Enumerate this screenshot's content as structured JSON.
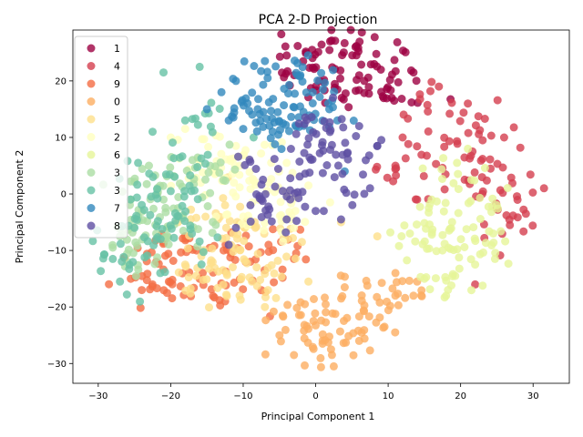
{
  "chart_data": {
    "type": "scatter",
    "title": "PCA 2-D Projection",
    "xlabel": "Principal Component 1",
    "ylabel": "Principal Component 2",
    "xlim": [
      -33.5,
      35
    ],
    "ylim": [
      -33.5,
      29
    ],
    "xticks": [
      -30,
      -20,
      -10,
      0,
      10,
      20,
      30
    ],
    "yticks": [
      -30,
      -20,
      -10,
      0,
      10,
      20
    ],
    "grid": false,
    "legend_position": "top-left",
    "marker_alpha": 0.8,
    "series": [
      {
        "name": "1",
        "color": "#9e0142",
        "centers": [
          [
            3,
            25.5
          ],
          [
            6,
            23.5
          ],
          [
            8,
            24.5
          ],
          [
            1,
            22
          ],
          [
            -1,
            23.5
          ],
          [
            4,
            20
          ],
          [
            10,
            21
          ],
          [
            7,
            18.5
          ],
          [
            12,
            20
          ],
          [
            -3,
            24
          ]
        ],
        "points": [
          [
            2,
            27
          ],
          [
            -0.5,
            25.5
          ],
          [
            5.5,
            26
          ],
          [
            9,
            22
          ],
          [
            13.5,
            21.5
          ],
          [
            6,
            21
          ],
          [
            3,
            18.5
          ],
          [
            -4,
            24.5
          ],
          [
            10.5,
            17
          ],
          [
            0.5,
            20
          ]
        ]
      },
      {
        "name": "4",
        "color": "#d53e4f",
        "centers": [
          [
            16,
            8
          ],
          [
            22,
            9
          ],
          [
            24,
            5
          ],
          [
            18,
            2
          ],
          [
            27,
            0
          ],
          [
            12,
            6
          ],
          [
            20,
            13
          ],
          [
            15,
            16
          ],
          [
            25,
            -3
          ],
          [
            28,
            -6
          ]
        ],
        "points": [
          [
            21,
            16
          ],
          [
            26,
            10
          ],
          [
            11,
            5
          ],
          [
            14,
            -1
          ],
          [
            29,
            -3.5
          ],
          [
            31.5,
            1
          ],
          [
            22,
            -16
          ],
          [
            17,
            19
          ],
          [
            23,
            0
          ],
          [
            12,
            10
          ]
        ]
      },
      {
        "name": "9",
        "color": "#f46d43",
        "centers": [
          [
            -19,
            -13
          ],
          [
            -22,
            -14
          ],
          [
            -15,
            -10
          ],
          [
            -17,
            -18
          ],
          [
            -13,
            -13
          ],
          [
            -24,
            -16
          ],
          [
            -20,
            -9
          ],
          [
            -10,
            -11
          ],
          [
            -8,
            -15
          ],
          [
            -5,
            -10
          ]
        ],
        "points": [
          [
            -24,
            -17
          ],
          [
            -20.5,
            -17.5
          ],
          [
            -16,
            -15
          ],
          [
            -12.5,
            -19
          ],
          [
            -9,
            -12
          ],
          [
            -6.5,
            -9
          ],
          [
            -3,
            -11.5
          ],
          [
            -22,
            -12
          ],
          [
            -18,
            -7.5
          ],
          [
            -25.5,
            -15
          ]
        ]
      },
      {
        "name": "0",
        "color": "#fdae61",
        "centers": [
          [
            1,
            -22
          ],
          [
            4,
            -19
          ],
          [
            -2,
            -24
          ],
          [
            7,
            -21
          ],
          [
            10,
            -19
          ],
          [
            3,
            -26
          ],
          [
            12,
            -17
          ],
          [
            0,
            -27
          ],
          [
            -3,
            -21
          ],
          [
            8,
            -24
          ]
        ],
        "points": [
          [
            -5,
            -25
          ],
          [
            -3,
            -28.5
          ],
          [
            2.5,
            -30.5
          ],
          [
            9.5,
            -23.5
          ],
          [
            13.5,
            -18
          ],
          [
            11,
            -14
          ],
          [
            14,
            -15.5
          ],
          [
            6,
            -26
          ],
          [
            -1.5,
            -19.5
          ],
          [
            4,
            -16.5
          ]
        ]
      },
      {
        "name": "5",
        "color": "#fee08b",
        "centers": [
          [
            -13,
            -12
          ],
          [
            -9,
            -8
          ],
          [
            -15,
            -16
          ],
          [
            -11,
            -15
          ],
          [
            -7,
            -7
          ],
          [
            -12,
            -4
          ],
          [
            -16,
            -10
          ],
          [
            -6,
            -13
          ],
          [
            -8,
            -16
          ],
          [
            -14,
            -6
          ]
        ],
        "points": [
          [
            -18,
            -12.5
          ],
          [
            -7,
            -20
          ],
          [
            -10.5,
            -18
          ],
          [
            -4,
            -8
          ],
          [
            -16.5,
            -14.5
          ],
          [
            -12.5,
            -2
          ],
          [
            3.5,
            -5
          ],
          [
            8.5,
            -7.5
          ],
          [
            -1,
            -15.5
          ],
          [
            -19,
            -5
          ]
        ]
      },
      {
        "name": "2",
        "color": "#ffffbf",
        "centers": [
          [
            -12,
            6
          ],
          [
            -8,
            3
          ],
          [
            -14,
            4
          ],
          [
            -5,
            0
          ],
          [
            -10,
            -2
          ],
          [
            -2,
            -3
          ],
          [
            -17,
            7
          ],
          [
            -6,
            -5
          ],
          [
            -13,
            1
          ],
          [
            -9,
            7
          ]
        ],
        "points": [
          [
            -20,
            10
          ],
          [
            -16,
            5.5
          ],
          [
            -4,
            5.5
          ],
          [
            2,
            -1.5
          ],
          [
            -1,
            1.5
          ],
          [
            -18,
            11.5
          ],
          [
            -11,
            8.5
          ],
          [
            -6.5,
            2
          ],
          [
            -10,
            -4
          ],
          [
            -3,
            -6
          ]
        ]
      },
      {
        "name": "6",
        "color": "#e6f598",
        "centers": [
          [
            19,
            -8
          ],
          [
            22,
            -5
          ],
          [
            17,
            -12
          ],
          [
            16,
            -4
          ],
          [
            21,
            -12
          ],
          [
            24,
            -9
          ],
          [
            19,
            2
          ],
          [
            14,
            -8
          ],
          [
            23,
            0
          ],
          [
            20,
            -16
          ]
        ],
        "points": [
          [
            13,
            -7
          ],
          [
            15,
            -15
          ],
          [
            18,
            -18
          ],
          [
            22,
            -12.5
          ],
          [
            24.5,
            -7
          ],
          [
            25,
            -2
          ],
          [
            19.5,
            5.5
          ],
          [
            21,
            8
          ],
          [
            17.5,
            -10
          ],
          [
            16,
            -1
          ]
        ]
      },
      {
        "name": "3",
        "color": "#abdda4",
        "centers": [
          [
            -22,
            -3
          ],
          [
            -25,
            -6
          ],
          [
            -20,
            -6
          ],
          [
            -18,
            2
          ],
          [
            -23,
            1
          ],
          [
            -26,
            -9
          ],
          [
            -17,
            -4
          ],
          [
            -21,
            4
          ],
          [
            -24,
            -11
          ],
          [
            -15,
            3
          ]
        ],
        "points": [
          [
            -27,
            -7.5
          ],
          [
            -24.5,
            -4
          ],
          [
            -21,
            -1
          ],
          [
            -17,
            6
          ],
          [
            -22,
            -7
          ],
          [
            -28,
            -9.5
          ],
          [
            -26,
            -12
          ],
          [
            -19,
            -2.5
          ],
          [
            -23,
            5
          ],
          [
            -25.5,
            -1
          ]
        ]
      },
      {
        "name": "3",
        "color": "#66c2a5",
        "centers": [
          [
            -23,
            -4
          ],
          [
            -26,
            -9
          ],
          [
            -19,
            -2
          ],
          [
            -21,
            3
          ],
          [
            -24,
            2
          ],
          [
            -18,
            -6
          ],
          [
            -27,
            -13
          ],
          [
            -20,
            -10
          ],
          [
            -17,
            7
          ],
          [
            -15,
            13
          ]
        ],
        "points": [
          [
            -28,
            -11.5
          ],
          [
            -27,
            -15.5
          ],
          [
            -24.5,
            5.5
          ],
          [
            -22.5,
            11
          ],
          [
            -21,
            21.5
          ],
          [
            -16,
            22.5
          ],
          [
            -18,
            13
          ],
          [
            -25,
            -6
          ],
          [
            -20,
            0.5
          ],
          [
            -22,
            -8
          ]
        ]
      },
      {
        "name": "7",
        "color": "#3288bd",
        "centers": [
          [
            -5,
            18
          ],
          [
            -2,
            16
          ],
          [
            -7,
            20
          ],
          [
            -4,
            14
          ],
          [
            -9,
            16
          ],
          [
            -1,
            20
          ],
          [
            -3,
            11
          ],
          [
            -6,
            12
          ],
          [
            2,
            14
          ],
          [
            -8,
            13
          ]
        ],
        "points": [
          [
            -11,
            20
          ],
          [
            -10,
            11.5
          ],
          [
            -15,
            15
          ],
          [
            -13,
            18
          ],
          [
            -7,
            23.5
          ],
          [
            1,
            18.5
          ],
          [
            3,
            13
          ],
          [
            4,
            4
          ],
          [
            -12,
            13
          ],
          [
            -2.5,
            21
          ]
        ]
      },
      {
        "name": "8",
        "color": "#5e4fa2",
        "centers": [
          [
            -2,
            5
          ],
          [
            1,
            8
          ],
          [
            -5,
            3
          ],
          [
            3,
            2
          ],
          [
            -1,
            13
          ],
          [
            -8,
            4
          ],
          [
            2,
            11
          ],
          [
            -3,
            -2
          ],
          [
            5,
            9
          ],
          [
            -6,
            -3
          ]
        ],
        "points": [
          [
            -9,
            -2
          ],
          [
            -11,
            -6
          ],
          [
            -7.5,
            -1
          ],
          [
            -4,
            -4.5
          ],
          [
            0,
            -3
          ],
          [
            3.5,
            -4.5
          ],
          [
            7.5,
            1
          ],
          [
            8.5,
            8.5
          ],
          [
            6,
            12
          ],
          [
            -12,
            -9
          ]
        ]
      }
    ]
  }
}
